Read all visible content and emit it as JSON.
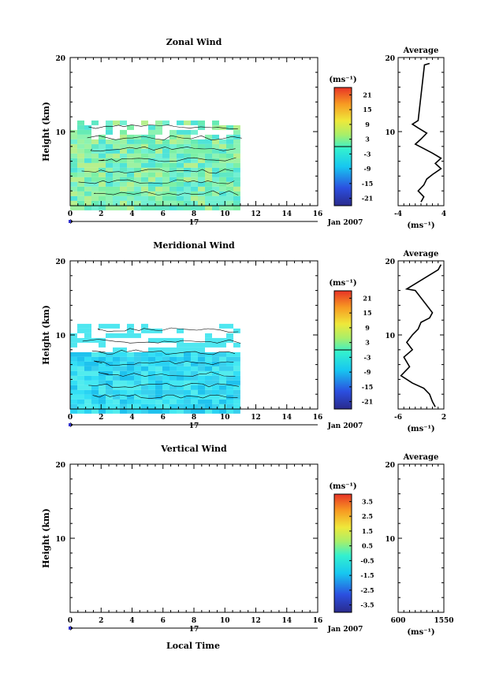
{
  "month_label": "Jan 2007",
  "day_label": "17",
  "xlabel": "Local Time",
  "average_title": "Average",
  "height_label": "Height (km)",
  "unit_label": "(ms⁻¹)",
  "x_ticks": [
    0,
    2,
    4,
    6,
    8,
    10,
    12,
    14,
    16
  ],
  "y_ticks": [
    10,
    20
  ],
  "chart_data": [
    {
      "type": "heatmap",
      "title": "Zonal Wind",
      "xlim": [
        0,
        16
      ],
      "ylim": [
        0,
        20
      ],
      "data_x_range": [
        0,
        11
      ],
      "data_y_range": [
        0,
        11.5
      ],
      "colorbar": {
        "ticks": [
          21,
          15,
          9,
          3,
          -3,
          -9,
          -15,
          -21
        ],
        "range": [
          -24,
          24
        ]
      },
      "profile": {
        "title": "Average",
        "xlim": [
          -4,
          4
        ],
        "ticks": [
          -4,
          4
        ],
        "ylim": [
          0,
          20
        ],
        "points": [
          [
            1.5,
            19.2
          ],
          [
            0.6,
            19.0
          ],
          [
            -0.5,
            11.5
          ],
          [
            -1.5,
            11.0
          ],
          [
            -0.5,
            10.5
          ],
          [
            1.0,
            9.8
          ],
          [
            0.0,
            9.0
          ],
          [
            -1.0,
            8.3
          ],
          [
            0.5,
            7.7
          ],
          [
            2.0,
            7.1
          ],
          [
            3.5,
            6.4
          ],
          [
            2.5,
            5.7
          ],
          [
            3.5,
            5.0
          ],
          [
            2.0,
            4.2
          ],
          [
            1.0,
            3.6
          ],
          [
            0.5,
            2.8
          ],
          [
            -0.5,
            2.0
          ],
          [
            0.5,
            1.2
          ],
          [
            0.0,
            0.5
          ]
        ]
      }
    },
    {
      "type": "heatmap",
      "title": "Meridional Wind",
      "xlim": [
        0,
        16
      ],
      "ylim": [
        0,
        20
      ],
      "data_x_range": [
        0,
        11
      ],
      "data_y_range": [
        0,
        11.5
      ],
      "colorbar": {
        "ticks": [
          21,
          15,
          9,
          3,
          -3,
          -9,
          -15,
          -21
        ],
        "range": [
          -24,
          24
        ]
      },
      "profile": {
        "title": "Average",
        "xlim": [
          -6,
          2
        ],
        "ticks": [
          -6,
          2
        ],
        "ylim": [
          0,
          20
        ],
        "points": [
          [
            1.5,
            19.5
          ],
          [
            1.0,
            18.8
          ],
          [
            -4.5,
            16.2
          ],
          [
            -3.0,
            16.0
          ],
          [
            -1.0,
            14.0
          ],
          [
            0.0,
            13.0
          ],
          [
            -0.5,
            12.3
          ],
          [
            -2.0,
            11.7
          ],
          [
            -2.5,
            10.8
          ],
          [
            -3.5,
            10.0
          ],
          [
            -4.5,
            9.0
          ],
          [
            -3.5,
            8.0
          ],
          [
            -5.0,
            7.0
          ],
          [
            -4.0,
            5.7
          ],
          [
            -5.5,
            4.5
          ],
          [
            -3.5,
            3.5
          ],
          [
            -1.5,
            2.8
          ],
          [
            -0.5,
            2.0
          ],
          [
            0.0,
            1.0
          ],
          [
            0.5,
            0.3
          ]
        ]
      }
    },
    {
      "type": "heatmap",
      "title": "Vertical Wind",
      "xlim": [
        0,
        16
      ],
      "ylim": [
        0,
        20
      ],
      "data_x_range": null,
      "data_y_range": null,
      "colorbar": {
        "ticks": [
          3.5,
          2.5,
          1.5,
          0.5,
          -0.5,
          -1.5,
          -2.5,
          -3.5
        ],
        "range": [
          -4,
          4
        ]
      },
      "profile": {
        "title": "Average",
        "xlim": [
          600,
          1550
        ],
        "ticks": [
          600,
          1550
        ],
        "ylim": [
          0,
          20
        ],
        "points": []
      }
    }
  ]
}
